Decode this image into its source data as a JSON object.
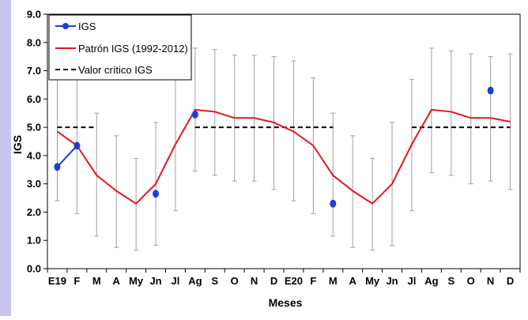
{
  "chart_data": {
    "type": "line",
    "xlabel": "Meses",
    "ylabel": "IGS",
    "ylim": [
      0,
      9
    ],
    "yticks": [
      "0.0",
      "1.0",
      "2.0",
      "3.0",
      "4.0",
      "5.0",
      "6.0",
      "7.0",
      "8.0",
      "9.0"
    ],
    "categories": [
      "E19",
      "F",
      "M",
      "A",
      "My",
      "Jn",
      "Jl",
      "Ag",
      "S",
      "O",
      "N",
      "D",
      "E20",
      "F",
      "M",
      "A",
      "My",
      "Jn",
      "Jl",
      "Ag",
      "S",
      "O",
      "N",
      "D"
    ],
    "legend_position": "top-left",
    "series": [
      {
        "name": "IGS",
        "color": "#1f3fd6",
        "marker": "circle",
        "values": [
          3.6,
          4.35,
          null,
          null,
          null,
          2.65,
          null,
          5.45,
          null,
          null,
          null,
          null,
          null,
          null,
          2.3,
          null,
          null,
          null,
          null,
          null,
          null,
          null,
          6.3,
          null
        ]
      },
      {
        "name": "Patrón IGS (1992-2012)",
        "color": "#e8141c",
        "values": [
          4.85,
          4.35,
          3.3,
          2.75,
          2.3,
          3.0,
          4.4,
          5.62,
          5.55,
          5.33,
          5.33,
          5.17,
          4.85,
          4.35,
          3.3,
          2.75,
          2.3,
          3.0,
          4.4,
          5.62,
          5.55,
          5.33,
          5.33,
          5.2
        ],
        "error_low": [
          2.4,
          1.95,
          1.15,
          0.75,
          0.65,
          0.82,
          2.05,
          3.45,
          3.3,
          3.1,
          3.1,
          2.8,
          2.4,
          1.95,
          1.15,
          0.75,
          0.65,
          0.82,
          2.05,
          3.4,
          3.3,
          3.0,
          3.1,
          2.8
        ],
        "error_high": [
          7.3,
          6.75,
          5.5,
          4.7,
          3.9,
          5.17,
          6.75,
          7.8,
          7.75,
          7.55,
          7.55,
          7.5,
          7.35,
          6.75,
          5.5,
          4.7,
          3.9,
          5.17,
          6.7,
          7.8,
          7.7,
          7.6,
          7.5,
          7.6
        ]
      },
      {
        "name": "Valor crítico IGS",
        "color": "#000000",
        "dashed": true,
        "value": 5.0,
        "segments": [
          [
            0,
            2
          ],
          [
            7,
            14
          ],
          [
            18,
            23
          ]
        ]
      }
    ]
  }
}
